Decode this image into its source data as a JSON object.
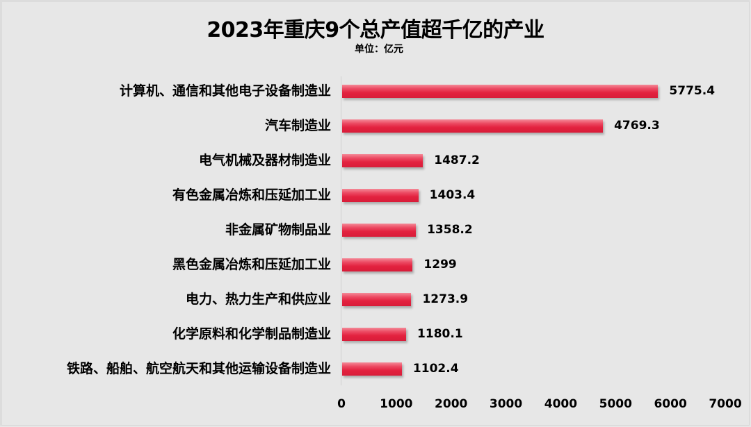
{
  "chart_data": {
    "type": "bar",
    "orientation": "horizontal",
    "title": "2023年重庆9个总产值超千亿的产业",
    "subtitle": "单位：亿元",
    "xlabel": "",
    "ylabel": "",
    "xlim": [
      0,
      7000
    ],
    "x_ticks": [
      "0",
      "1000",
      "2000",
      "3000",
      "4000",
      "5000",
      "6000",
      "7000"
    ],
    "grid": false,
    "legend": null,
    "bar_color": "#e3223f",
    "categories": [
      "计算机、通信和其他电子设备制造业",
      "汽车制造业",
      "电气机械及器材制造业",
      "有色金属冶炼和压延加工业",
      "非金属矿物制品业",
      "黑色金属冶炼和压延加工业",
      "电力、热力生产和供应业",
      "化学原料和化学制品制造业",
      "铁路、船舶、航空航天和其他运输设备制造业"
    ],
    "values": [
      5775.4,
      4769.3,
      1487.2,
      1403.4,
      1358.2,
      1299,
      1273.9,
      1180.1,
      1102.4
    ],
    "value_labels": [
      "5775.4",
      "4769.3",
      "1487.2",
      "1403.4",
      "1358.2",
      "1299",
      "1273.9",
      "1180.1",
      "1102.4"
    ]
  }
}
